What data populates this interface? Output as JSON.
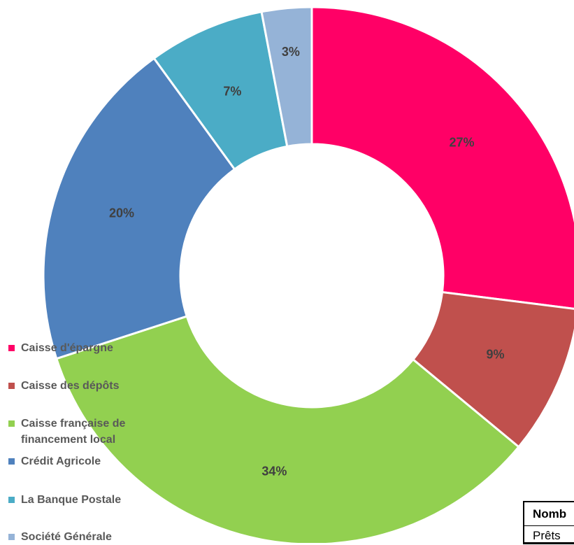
{
  "chart_data": {
    "type": "donut",
    "categories": [
      "Caisse d'épargne",
      "Caisse des dépôts",
      "Caisse française de financement local",
      "Crédit Agricole",
      "La Banque Postale",
      "Société Générale"
    ],
    "values": [
      27,
      9,
      34,
      20,
      7,
      3
    ],
    "value_labels": [
      "27%",
      "9%",
      "34%",
      "20%",
      "7%",
      "3%"
    ],
    "colors": [
      "#ff0066",
      "#c0504d",
      "#92d050",
      "#4f81bd",
      "#4bacc6",
      "#95b3d7"
    ],
    "legend": "left"
  },
  "table": {
    "header": "Nomb",
    "rows": [
      [
        "Prêts"
      ]
    ]
  }
}
